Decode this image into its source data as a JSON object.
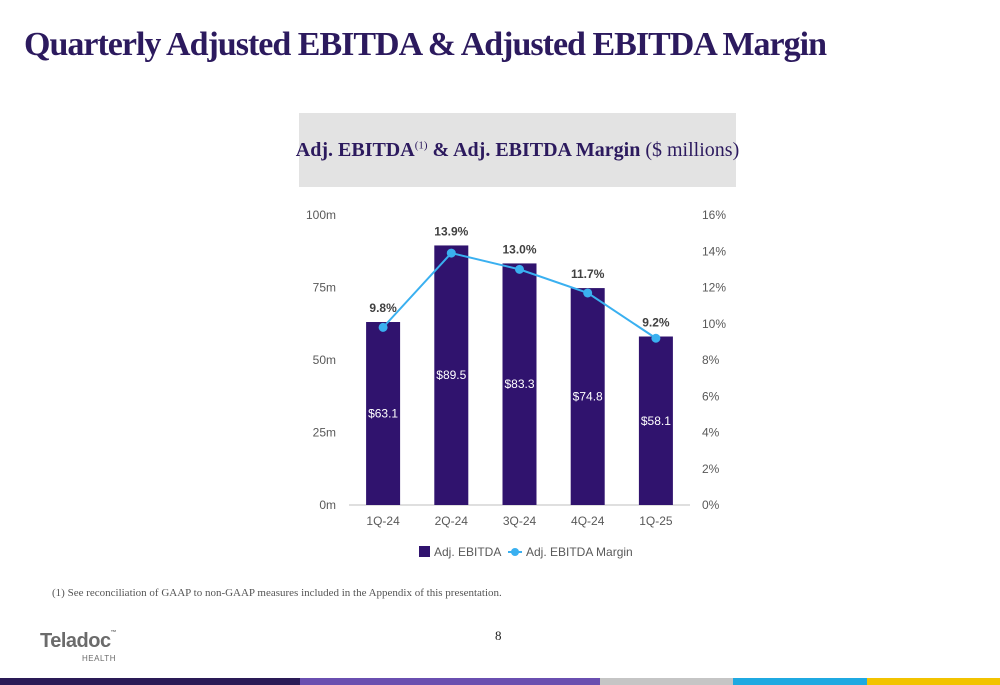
{
  "page": {
    "title": "Quarterly Adjusted EBITDA & Adjusted EBITDA Margin",
    "chart_header": {
      "main_a": "Adj. EBITDA",
      "sup": "(1)",
      "main_b": " & Adj. EBITDA Margin",
      "units": " ($ millions)"
    },
    "footnote": "(1) See reconciliation of GAAP to non-GAAP measures included in the Appendix of this presentation.",
    "page_number": "8",
    "logo": {
      "main": "Teladoc",
      "tm": "™",
      "sub": "HEALTH"
    },
    "colors": {
      "title": "#2c1a5e",
      "bar": "#30136e",
      "line": "#3ab0f0",
      "header_bg": "#e3e3e3"
    },
    "bottom_bar_colors": [
      "#2a1a56",
      "#6a4fb0",
      "#c5c5c5",
      "#1fa9e1",
      "#f2c300"
    ]
  },
  "chart_data": {
    "type": "bar",
    "categories": [
      "1Q-24",
      "2Q-24",
      "3Q-24",
      "4Q-24",
      "1Q-25"
    ],
    "series": [
      {
        "name": "Adj. EBITDA",
        "type": "bar",
        "axis": "left",
        "values": [
          63.1,
          89.5,
          83.3,
          74.8,
          58.1
        ],
        "labels": [
          "$63.1",
          "$89.5",
          "$83.3",
          "$74.8",
          "$58.1"
        ]
      },
      {
        "name": "Adj. EBITDA Margin",
        "type": "line",
        "axis": "right",
        "values": [
          9.8,
          13.9,
          13.0,
          11.7,
          9.2
        ],
        "labels": [
          "9.8%",
          "13.9%",
          "13.0%",
          "11.7%",
          "9.2%"
        ]
      }
    ],
    "y_left": {
      "ticks": [
        0,
        25,
        50,
        75,
        100
      ],
      "tick_labels": [
        "0m",
        "25m",
        "50m",
        "75m",
        "100m"
      ],
      "ylim": [
        0,
        100
      ]
    },
    "y_right": {
      "ticks": [
        0,
        2,
        4,
        6,
        8,
        10,
        12,
        14,
        16
      ],
      "tick_labels": [
        "0%",
        "2%",
        "4%",
        "6%",
        "8%",
        "10%",
        "12%",
        "14%",
        "16%"
      ],
      "ylim": [
        0,
        16
      ]
    },
    "legend": {
      "position": "bottom",
      "items": [
        "Adj. EBITDA",
        "Adj. EBITDA Margin"
      ]
    },
    "grid": false
  }
}
